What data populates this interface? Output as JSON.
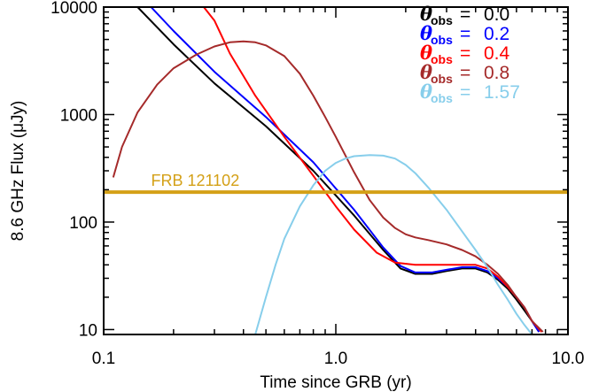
{
  "chart_data": {
    "type": "line",
    "title": "",
    "xlabel": "Time since GRB (yr)",
    "ylabel": "8.6 GHz Flux (μJy)",
    "xscale": "log",
    "yscale": "log",
    "xlim": [
      0.1,
      10.0
    ],
    "ylim": [
      9,
      10000
    ],
    "xticks": [
      {
        "value": 0.1,
        "label": "0.1"
      },
      {
        "value": 1.0,
        "label": "1.0"
      },
      {
        "value": 10.0,
        "label": "10.0"
      }
    ],
    "yticks": [
      {
        "value": 10,
        "label": "10"
      },
      {
        "value": 100,
        "label": "100"
      },
      {
        "value": 1000,
        "label": "1000"
      },
      {
        "value": 10000,
        "label": "10000"
      }
    ],
    "grid": false,
    "legend_position": "top-right",
    "legend_symbol": "θ",
    "legend_subscript": "obs",
    "series": [
      {
        "name": "0.0",
        "color": "#000000",
        "x": [
          0.14,
          0.2,
          0.3,
          0.5,
          0.8,
          1.2,
          1.6,
          1.9,
          2.2,
          2.6,
          3.0,
          3.5,
          4.0,
          4.5,
          5.0,
          5.5,
          6.0,
          6.5,
          7.0,
          7.5
        ],
        "y": [
          10000,
          4500,
          1950,
          780,
          300,
          115,
          55,
          37,
          33,
          33,
          35,
          37,
          37,
          34,
          29,
          24,
          19,
          15,
          12,
          9.5
        ]
      },
      {
        "name": "0.2",
        "color": "#0000ff",
        "x": [
          0.16,
          0.2,
          0.3,
          0.5,
          0.8,
          1.2,
          1.6,
          1.9,
          2.2,
          2.6,
          3.0,
          3.5,
          4.0,
          4.5,
          5.0,
          5.5,
          6.0,
          6.5,
          7.0,
          7.5
        ],
        "y": [
          10000,
          6000,
          2500,
          950,
          360,
          130,
          58,
          39,
          34,
          34,
          36,
          38,
          38,
          35,
          30,
          25,
          20,
          16,
          12,
          9.5
        ]
      },
      {
        "name": "0.4",
        "color": "#ff0000",
        "x": [
          0.27,
          0.3,
          0.35,
          0.45,
          0.6,
          0.8,
          1.0,
          1.2,
          1.5,
          1.8,
          2.2,
          2.6,
          3.0,
          3.5,
          4.0,
          4.5,
          5.0,
          5.5,
          6.0,
          6.5,
          7.0,
          7.7
        ],
        "y": [
          10000,
          7500,
          3700,
          1500,
          620,
          270,
          140,
          85,
          52,
          42,
          40,
          40,
          40,
          40,
          40,
          37,
          31,
          25,
          20,
          16,
          12,
          9.5
        ]
      },
      {
        "name": "0.8",
        "color": "#a52a2a",
        "x": [
          0.11,
          0.12,
          0.14,
          0.17,
          0.2,
          0.25,
          0.3,
          0.35,
          0.4,
          0.45,
          0.5,
          0.6,
          0.7,
          0.8,
          0.9,
          1.0,
          1.2,
          1.4,
          1.6,
          1.8,
          2.0,
          2.2,
          2.5,
          3.0,
          3.5,
          4.0,
          4.5,
          5.0,
          5.5,
          6.0,
          6.5,
          7.0,
          7.8
        ],
        "y": [
          260,
          500,
          1050,
          1900,
          2700,
          3600,
          4300,
          4700,
          4800,
          4700,
          4400,
          3500,
          2400,
          1500,
          950,
          620,
          290,
          160,
          110,
          88,
          77,
          72,
          68,
          62,
          55,
          48,
          40,
          33,
          26,
          20,
          16,
          12,
          9.5
        ]
      },
      {
        "name": "1.57",
        "color": "#87ceeb",
        "x": [
          0.45,
          0.5,
          0.55,
          0.6,
          0.7,
          0.8,
          0.9,
          1.0,
          1.1,
          1.2,
          1.4,
          1.6,
          1.8,
          2.0,
          2.2,
          2.5,
          3.0,
          3.5,
          4.0,
          4.5,
          5.0,
          5.5,
          6.0,
          6.5,
          7.0
        ],
        "y": [
          9,
          20,
          40,
          70,
          140,
          220,
          300,
          355,
          390,
          410,
          420,
          415,
          390,
          340,
          285,
          210,
          130,
          82,
          55,
          38,
          26,
          19,
          14,
          11,
          9
        ]
      }
    ],
    "annotations": [
      {
        "type": "hline",
        "y": 190,
        "color": "#d4a017",
        "label": "FRB 121102",
        "label_x": 0.16
      }
    ]
  }
}
